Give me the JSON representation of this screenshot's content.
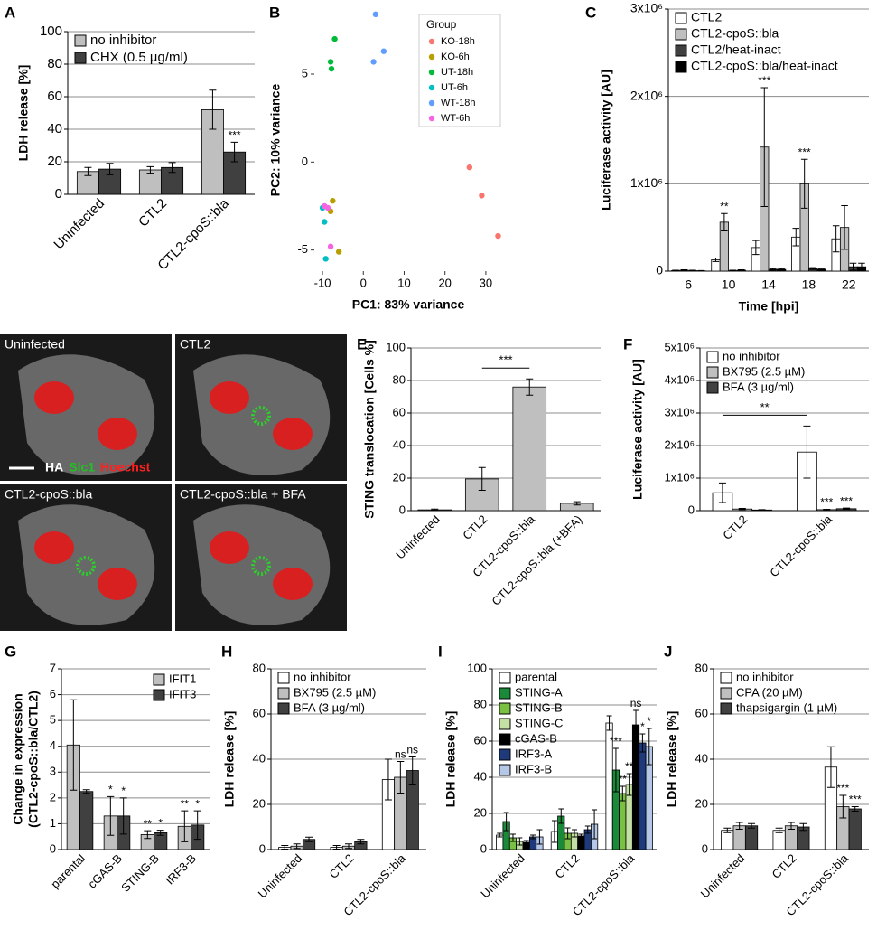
{
  "chart_data": [
    {
      "panel": "A",
      "type": "bar",
      "ylabel": "LDH release [%]",
      "categories": [
        "Uninfected",
        "CTL2",
        "CTL2-cpoS::bla"
      ],
      "ylim": [
        0,
        100
      ],
      "yticks": [
        0,
        20,
        40,
        60,
        80,
        100
      ],
      "grid": true,
      "legend": "top-left",
      "series": [
        {
          "name": "no inhibitor",
          "color": "#bfbfbf",
          "values": [
            14,
            15,
            52
          ],
          "errors": [
            2.5,
            2,
            12
          ],
          "annotations": [
            null,
            null,
            null
          ]
        },
        {
          "name": "CHX (0.5 µg/ml)",
          "color": "#404040",
          "values": [
            15.5,
            16.5,
            26
          ],
          "errors": [
            3.5,
            3,
            6
          ],
          "annotations": [
            null,
            null,
            "***"
          ]
        }
      ]
    },
    {
      "panel": "B",
      "type": "scatter",
      "xlabel": "PC1: 83% variance",
      "ylabel": "PC2: 10% variance",
      "legend_title": "Group",
      "legend": "top-right",
      "xlim": [
        -12,
        34
      ],
      "ylim": [
        -6.2,
        8.7
      ],
      "xticks": [
        -10,
        0,
        10,
        20,
        30
      ],
      "yticks": [
        -5,
        0,
        5
      ],
      "grid": false,
      "series": [
        {
          "name": "KO-18h",
          "color": "#f8766d",
          "x": [
            26,
            29,
            33
          ],
          "values": [
            -0.3,
            -1.9,
            -4.2
          ]
        },
        {
          "name": "KO-6h",
          "color": "#b79f00",
          "x": [
            -7.5,
            -8,
            -6
          ],
          "values": [
            -2.2,
            -2.8,
            -5.1
          ]
        },
        {
          "name": "UT-18h",
          "color": "#00ba38",
          "x": [
            -7,
            -8,
            -7.8
          ],
          "values": [
            7.0,
            5.7,
            5.3
          ]
        },
        {
          "name": "UT-6h",
          "color": "#00bfc4",
          "x": [
            -10,
            -9.5,
            -9.2
          ],
          "values": [
            -2.6,
            -3.4,
            -5.5
          ]
        },
        {
          "name": "WT-18h",
          "color": "#619cff",
          "x": [
            3,
            5,
            2.5
          ],
          "values": [
            8.4,
            6.3,
            5.7
          ]
        },
        {
          "name": "WT-6h",
          "color": "#f564e3",
          "x": [
            -9.5,
            -8.7,
            -8
          ],
          "values": [
            -2.5,
            -2.6,
            -4.8
          ]
        }
      ]
    },
    {
      "panel": "C",
      "type": "bar",
      "ylabel": "Luciferase activity [AU]",
      "xlabel": "Time [hpi]",
      "rotate": false,
      "categories": [
        "6",
        "10",
        "14",
        "18",
        "22"
      ],
      "ylim": [
        0,
        3000000
      ],
      "yticks": [
        0,
        {
          "value": 1000000,
          "label": "1x10⁶"
        },
        {
          "value": 2000000,
          "label": "2x10⁶"
        },
        {
          "value": 3000000,
          "label": "3x10⁶"
        }
      ],
      "grid": true,
      "legend": "top-left",
      "series": [
        {
          "name": "CTL2",
          "color": "#ffffff",
          "values": [
            5000,
            130000,
            270000,
            390000,
            370000
          ],
          "errors": [
            5000,
            20000,
            80000,
            100000,
            150000
          ],
          "annotations": [
            null,
            null,
            null,
            null,
            null
          ]
        },
        {
          "name": "CTL2-cpoS::bla",
          "color": "#bfbfbf",
          "values": [
            10000,
            560000,
            1420000,
            1000000,
            500000
          ],
          "errors": [
            5000,
            100000,
            680000,
            280000,
            250000
          ],
          "annotations": [
            null,
            "**",
            "***",
            "***",
            null
          ]
        },
        {
          "name": "CTL2/heat-inact",
          "color": "#404040",
          "values": [
            5000,
            5000,
            20000,
            30000,
            50000
          ],
          "errors": [
            5000,
            5000,
            10000,
            10000,
            40000
          ],
          "annotations": [
            null,
            null,
            null,
            null,
            null
          ]
        },
        {
          "name": "CTL2-cpoS::bla/heat-inact",
          "color": "#000000",
          "values": [
            3000,
            10000,
            20000,
            20000,
            50000
          ],
          "errors": [
            3000,
            5000,
            10000,
            5000,
            40000
          ],
          "annotations": [
            null,
            null,
            null,
            null,
            null
          ]
        }
      ]
    },
    {
      "panel": "D",
      "type": "image",
      "images": [
        "Uninfected",
        "CTL2",
        "CTL2-cpoS::bla",
        "CTL2-cpoS::bla + BFA"
      ],
      "stains": [
        {
          "text": "HA",
          "color": "#ffffff"
        },
        {
          "text": "Slc1",
          "color": "#22c022"
        },
        {
          "text": "Hoechst",
          "color": "#ff2020"
        }
      ]
    },
    {
      "panel": "E",
      "type": "bar",
      "ylabel": "STING translocation [Cells %]",
      "categories": [
        "Uninfected",
        "CTL2",
        "CTL2-cpoS::bla",
        "CTL2-cpoS::bla (+BFA)"
      ],
      "ylim": [
        0,
        100
      ],
      "yticks": [
        0,
        20,
        40,
        60,
        80,
        100
      ],
      "grid": true,
      "series": [
        {
          "color": "#bfbfbf",
          "values": [
            0.5,
            19.5,
            76,
            4.5
          ],
          "errors": [
            0.5,
            7,
            5,
            1
          ],
          "annotations": [
            null,
            null,
            null,
            null
          ]
        }
      ],
      "brackets": [
        {
          "text": "***",
          "from": "CTL2",
          "to": "CTL2-cpoS::bla"
        }
      ]
    },
    {
      "panel": "F",
      "type": "bar",
      "ylabel": "Luciferase activity [AU]",
      "categories": [
        "CTL2",
        "CTL2-cpoS::bla"
      ],
      "ylim": [
        0,
        5000000
      ],
      "yticks": [
        0,
        {
          "value": 1000000,
          "label": "1x10⁶"
        },
        {
          "value": 2000000,
          "label": "2x10⁶"
        },
        {
          "value": 3000000,
          "label": "3x10⁶"
        },
        {
          "value": 4000000,
          "label": "4x10⁶"
        },
        {
          "value": 5000000,
          "label": "5x10⁶"
        }
      ],
      "grid": true,
      "legend": "top-left",
      "series": [
        {
          "name": "no inhibitor",
          "color": "#ffffff",
          "values": [
            550000,
            1800000
          ],
          "errors": [
            300000,
            800000
          ],
          "annotations": [
            null,
            null
          ]
        },
        {
          "name": "BX795 (2.5 µM)",
          "color": "#bfbfbf",
          "values": [
            50000,
            30000
          ],
          "errors": [
            20000,
            10000
          ],
          "annotations": [
            null,
            "***"
          ]
        },
        {
          "name": "BFA (3 µg/ml)",
          "color": "#404040",
          "values": [
            20000,
            60000
          ],
          "errors": [
            10000,
            20000
          ],
          "annotations": [
            null,
            "***"
          ]
        }
      ],
      "brackets": [
        {
          "text": "**",
          "from": "CTL2",
          "to": "CTL2-cpoS::bla"
        }
      ]
    },
    {
      "panel": "G",
      "type": "bar",
      "ylabel": [
        "Change in expression",
        "(CTL2-cpoS::bla/CTL2)"
      ],
      "categories": [
        "parental",
        "cGAS-B",
        "STING-B",
        "IRF3-B"
      ],
      "ylim": [
        0,
        7
      ],
      "yticks": [
        0,
        1,
        2,
        3,
        4,
        5,
        6,
        7
      ],
      "grid": true,
      "legend": "top-right",
      "series": [
        {
          "name": "IFIT1",
          "color": "#bfbfbf",
          "values": [
            4.05,
            1.3,
            0.58,
            0.9
          ],
          "errors": [
            1.75,
            0.75,
            0.15,
            0.6
          ],
          "annotations": [
            null,
            "*",
            "**",
            "**"
          ]
        },
        {
          "name": "IFIT3",
          "color": "#404040",
          "values": [
            2.25,
            1.3,
            0.65,
            0.95
          ],
          "errors": [
            0.07,
            0.7,
            0.1,
            0.55
          ],
          "annotations": [
            null,
            "*",
            "*",
            "*"
          ]
        }
      ]
    },
    {
      "panel": "H",
      "type": "bar",
      "ylabel": "LDH release [%]",
      "categories": [
        "Uninfected",
        "CTL2",
        "CTL2-cpoS::bla"
      ],
      "ylim": [
        0,
        80
      ],
      "yticks": [
        0,
        20,
        40,
        60,
        80
      ],
      "grid": true,
      "legend": "top-left",
      "series": [
        {
          "name": "no inhibitor",
          "color": "#ffffff",
          "values": [
            1,
            1,
            31
          ],
          "errors": [
            0.8,
            0.8,
            9
          ],
          "annotations": [
            null,
            null,
            null
          ]
        },
        {
          "name": "BX795 (2.5 µM)",
          "color": "#bfbfbf",
          "values": [
            1.5,
            1.5,
            32
          ],
          "errors": [
            1,
            1,
            7
          ],
          "annotations": [
            null,
            null,
            "ns"
          ]
        },
        {
          "name": "BFA (3 µg/ml)",
          "color": "#404040",
          "values": [
            4.5,
            3.5,
            35
          ],
          "errors": [
            1,
            1,
            6
          ],
          "annotations": [
            null,
            null,
            "ns"
          ]
        }
      ]
    },
    {
      "panel": "I",
      "type": "bar",
      "ylabel": "LDH release [%]",
      "categories": [
        "Uninfected",
        "CTL2",
        "CTL2-cpoS::bla"
      ],
      "ylim": [
        0,
        100
      ],
      "yticks": [
        0,
        20,
        40,
        60,
        80,
        100
      ],
      "grid": true,
      "legend": "top-left",
      "series": [
        {
          "name": "parental",
          "color": "#ffffff",
          "values": [
            8,
            10,
            70
          ],
          "errors": [
            1,
            6,
            4
          ],
          "annotations": [
            null,
            null,
            null
          ]
        },
        {
          "name": "STING-A",
          "color": "#1a8a3a",
          "values": [
            15.5,
            18.5,
            44
          ],
          "errors": [
            5,
            4,
            12
          ],
          "annotations": [
            null,
            null,
            "***"
          ]
        },
        {
          "name": "STING-B",
          "color": "#7ac143",
          "values": [
            6.5,
            9,
            31
          ],
          "errors": [
            2,
            3,
            4
          ],
          "annotations": [
            null,
            null,
            "**"
          ]
        },
        {
          "name": "STING-C",
          "color": "#c5e0a5",
          "values": [
            4.5,
            9,
            36
          ],
          "errors": [
            2,
            2,
            6
          ],
          "annotations": [
            null,
            null,
            "**"
          ]
        },
        {
          "name": "cGAS-B",
          "color": "#000000",
          "values": [
            4,
            7.5,
            69
          ],
          "errors": [
            1,
            1,
            8
          ],
          "annotations": [
            null,
            null,
            "ns"
          ]
        },
        {
          "name": "IRF3-A",
          "color": "#1f3a7a",
          "values": [
            7,
            11,
            59
          ],
          "errors": [
            1,
            2,
            5
          ],
          "annotations": [
            null,
            null,
            "*"
          ]
        },
        {
          "name": "IRF3-B",
          "color": "#b4c7e7",
          "values": [
            7,
            14,
            57
          ],
          "errors": [
            4,
            8,
            10
          ],
          "annotations": [
            null,
            null,
            "*"
          ]
        }
      ]
    },
    {
      "panel": "J",
      "type": "bar",
      "ylabel": "LDH release [%]",
      "categories": [
        "Uninfected",
        "CTL2",
        "CTL2-cpoS::bla"
      ],
      "ylim": [
        0,
        80
      ],
      "yticks": [
        0,
        20,
        40,
        60,
        80
      ],
      "grid": true,
      "legend": "top-left",
      "series": [
        {
          "name": "no inhibitor",
          "color": "#ffffff",
          "values": [
            8.5,
            8.5,
            36.5
          ],
          "errors": [
            1,
            1,
            9
          ],
          "annotations": [
            null,
            null,
            null
          ]
        },
        {
          "name": "CPA (20 µM)",
          "color": "#bfbfbf",
          "values": [
            10.5,
            10.5,
            19
          ],
          "errors": [
            1.5,
            1.5,
            5
          ],
          "annotations": [
            null,
            null,
            "***"
          ]
        },
        {
          "name": "thapsigargin (1 µM)",
          "color": "#404040",
          "values": [
            10.5,
            10,
            18
          ],
          "errors": [
            1,
            1.5,
            1
          ],
          "annotations": [
            null,
            null,
            "***"
          ]
        }
      ]
    }
  ]
}
